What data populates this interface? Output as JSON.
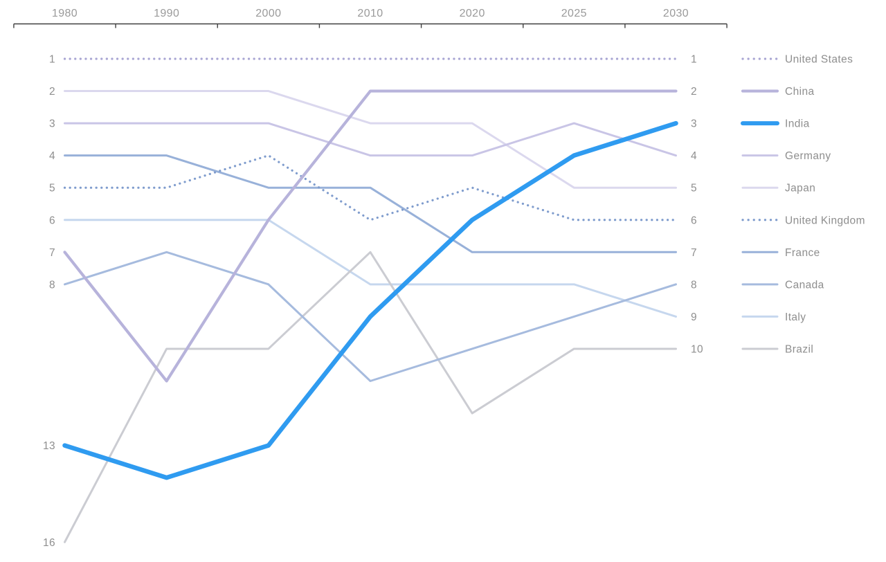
{
  "chart_data": {
    "type": "line",
    "subtype": "bump-rank-chart",
    "title": "",
    "x_tick_labels": [
      "1980",
      "1990",
      "2000",
      "2010",
      "2020",
      "2025",
      "2030"
    ],
    "y_meaning": "economy rank (1 = top)",
    "grid": false,
    "legend_position": "right",
    "axis_color": "#3f3f3f",
    "text_color": "#8e8e8e",
    "year_label_color": "#9a9a9a",
    "left_rank_labels": [
      1,
      2,
      3,
      4,
      5,
      6,
      7,
      8,
      13,
      16
    ],
    "right_rank_labels": [
      1,
      2,
      3,
      4,
      5,
      6,
      7,
      8,
      9,
      10
    ],
    "series": [
      {
        "name": "United States",
        "color": "#a8a5d3",
        "style": "dotted",
        "width": 3.2,
        "ranks": [
          1,
          1,
          1,
          1,
          1,
          1,
          1
        ]
      },
      {
        "name": "China",
        "color": "#b7b3db",
        "style": "solid",
        "width": 4.2,
        "ranks": [
          7,
          11,
          6,
          2,
          2,
          2,
          2
        ]
      },
      {
        "name": "India",
        "color": "#2f9bf0",
        "style": "solid",
        "width": 6.5,
        "ranks": [
          13,
          14,
          13,
          9,
          6,
          4,
          3
        ]
      },
      {
        "name": "Germany",
        "color": "#c9c5e6",
        "style": "solid",
        "width": 3.0,
        "ranks": [
          3,
          3,
          3,
          4,
          4,
          3,
          4
        ]
      },
      {
        "name": "Japan",
        "color": "#dbd8ee",
        "style": "solid",
        "width": 3.0,
        "ranks": [
          2,
          2,
          2,
          3,
          3,
          5,
          5
        ]
      },
      {
        "name": "United Kingdom",
        "color": "#7f9ccd",
        "style": "dotted",
        "width": 3.2,
        "ranks": [
          5,
          5,
          4,
          6,
          5,
          6,
          6
        ]
      },
      {
        "name": "France",
        "color": "#98b1d9",
        "style": "solid",
        "width": 3.0,
        "ranks": [
          4,
          4,
          5,
          5,
          7,
          7,
          7
        ]
      },
      {
        "name": "Canada",
        "color": "#a6bbde",
        "style": "solid",
        "width": 3.0,
        "ranks": [
          8,
          7,
          8,
          11,
          10,
          9,
          8
        ]
      },
      {
        "name": "Italy",
        "color": "#c6d7ee",
        "style": "solid",
        "width": 3.0,
        "ranks": [
          6,
          6,
          6,
          8,
          8,
          8,
          9
        ]
      },
      {
        "name": "Brazil",
        "color": "#cbccd2",
        "style": "solid",
        "width": 3.0,
        "ranks": [
          16,
          10,
          10,
          7,
          12,
          10,
          10
        ]
      }
    ]
  }
}
